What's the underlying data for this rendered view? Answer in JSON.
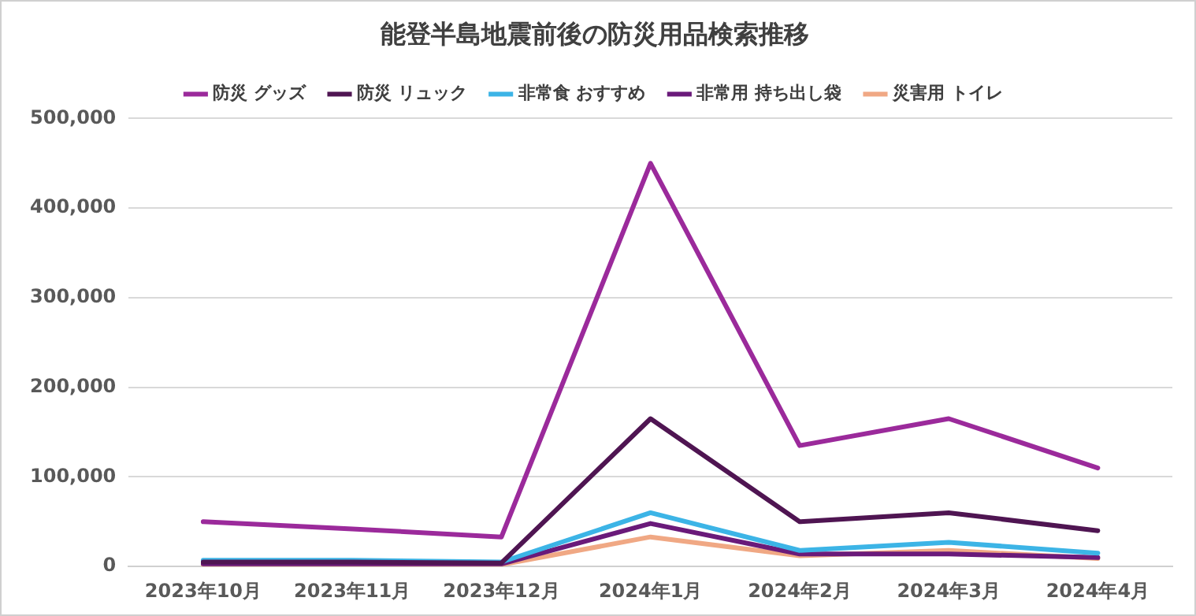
{
  "chart_data": {
    "type": "line",
    "title": "能登半島地震前後の防災用品検索推移",
    "categories": [
      "2023年10月",
      "2023年11月",
      "2023年12月",
      "2024年1月",
      "2024年2月",
      "2024年3月",
      "2024年4月"
    ],
    "series": [
      {
        "name": "防災 グッズ",
        "color": "#9b2a9b",
        "values": [
          50000,
          42000,
          33000,
          450000,
          135000,
          165000,
          110000
        ]
      },
      {
        "name": "防災 リュック",
        "color": "#4f1552",
        "values": [
          5000,
          5000,
          4000,
          165000,
          50000,
          60000,
          40000
        ]
      },
      {
        "name": "非常食 おすすめ",
        "color": "#3cb4e6",
        "values": [
          7000,
          7000,
          5000,
          60000,
          18000,
          27000,
          15000
        ]
      },
      {
        "name": "非常用 持ち出し袋",
        "color": "#6a1a7a",
        "values": [
          3000,
          3000,
          3000,
          48000,
          14000,
          14000,
          10000
        ]
      },
      {
        "name": "災害用 トイレ",
        "color": "#f0a884",
        "values": [
          2000,
          2000,
          2000,
          33000,
          12000,
          18000,
          9000
        ]
      }
    ],
    "ylim": [
      0,
      500000
    ],
    "yticks": [
      0,
      {
        "value": 100000,
        "label": "100,000"
      },
      {
        "value": 200000,
        "label": "200,000"
      },
      {
        "value": 300000,
        "label": "300,000"
      },
      {
        "value": 400000,
        "label": "400,000"
      },
      {
        "value": 500000,
        "label": "500,000"
      }
    ],
    "grid": "y",
    "legend": "top",
    "marker": "none",
    "line_style": "solid"
  }
}
